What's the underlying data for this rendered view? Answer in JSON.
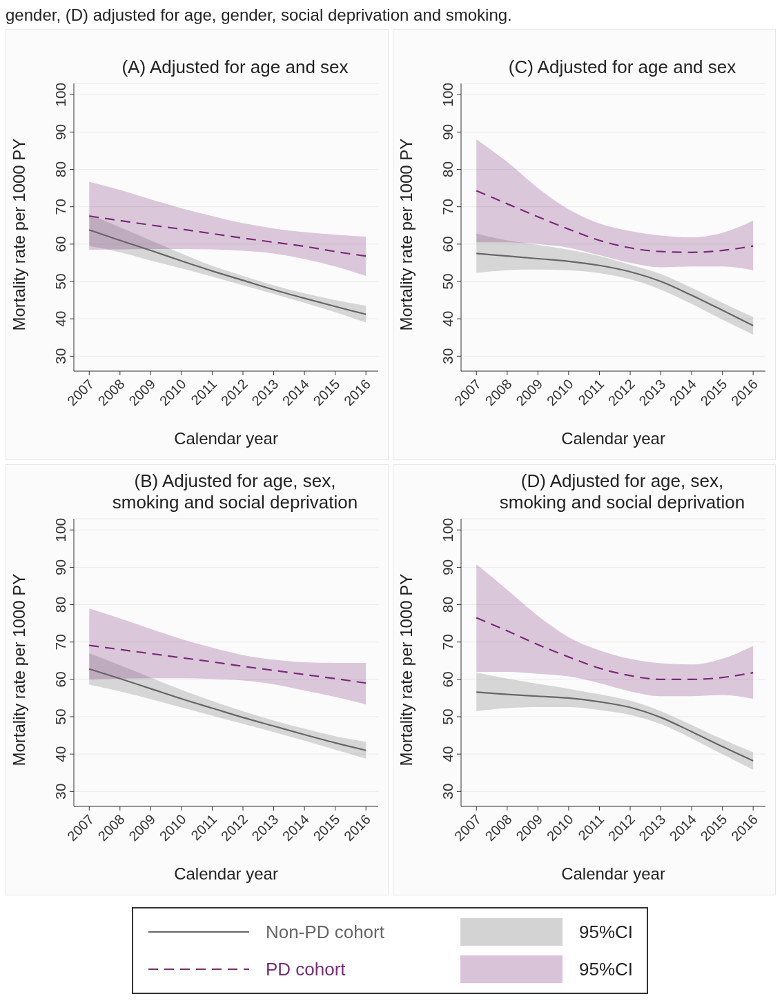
{
  "chart_data": [
    {
      "type": "line",
      "title": "(A) Adjusted for age and sex",
      "xlabel": "Calendar year",
      "ylabel": "Mortality rate per 1000 PY",
      "annotations": [
        "gender, (D) adjusted for age, gender, social deprivation and smoking."
      ],
      "x": [
        2007,
        2008,
        2009,
        2010,
        2011,
        2012,
        2013,
        2014,
        2015,
        2016
      ],
      "xlim": [
        2006.5,
        2016.4
      ],
      "xticks": [
        2007,
        2008,
        2009,
        2010,
        2011,
        2012,
        2013,
        2014,
        2015,
        2016
      ],
      "ylim": [
        26,
        103
      ],
      "yticks": [
        30,
        40,
        50,
        60,
        70,
        80,
        90,
        100
      ],
      "grid": "y",
      "series": [
        {
          "color": "#666666",
          "line_style": "solid",
          "values": [
            63.8,
            61,
            58.3,
            55.5,
            52.8,
            50.3,
            47.8,
            45.5,
            43.3,
            41.2
          ],
          "lower": [
            59.5,
            57.8,
            55.6,
            53.5,
            51.3,
            49,
            46.7,
            44.3,
            41.8,
            39
          ],
          "upper": [
            68,
            64.5,
            61,
            57.5,
            54.2,
            51.5,
            49,
            46.8,
            45,
            43.5
          ]
        },
        {
          "color": "#7a2a78",
          "line_style": "dashed",
          "values": [
            67.5,
            66.3,
            65.1,
            64,
            62.8,
            61.6,
            60.5,
            59.4,
            58,
            56.8
          ],
          "lower": [
            58.5,
            58.6,
            58.7,
            58.7,
            58.6,
            58.2,
            57.5,
            56,
            54,
            51.5
          ],
          "upper": [
            76.7,
            74.5,
            72,
            69.6,
            67.5,
            65.6,
            64.2,
            63.2,
            62.5,
            62
          ]
        }
      ]
    },
    {
      "type": "line",
      "title": "(C) Adjusted for age and sex",
      "xlabel": "Calendar year",
      "ylabel": "Mortality rate per 1000 PY",
      "x": [
        2007,
        2008,
        2009,
        2010,
        2011,
        2012,
        2013,
        2014,
        2015,
        2016
      ],
      "xlim": [
        2006.5,
        2016.4
      ],
      "xticks": [
        2007,
        2008,
        2009,
        2010,
        2011,
        2012,
        2013,
        2014,
        2015,
        2016
      ],
      "ylim": [
        26,
        103
      ],
      "yticks": [
        30,
        40,
        50,
        60,
        70,
        80,
        90,
        100
      ],
      "grid": "y",
      "series": [
        {
          "color": "#666666",
          "line_style": "solid",
          "values": [
            57.5,
            56.8,
            56.1,
            55.4,
            54.3,
            52.6,
            50,
            46.3,
            42.3,
            38.2
          ],
          "lower": [
            52.3,
            53,
            53.2,
            53,
            52.2,
            50.6,
            47.8,
            44,
            39.8,
            35.8
          ],
          "upper": [
            62.8,
            61,
            59.8,
            58.5,
            56.8,
            54.5,
            52,
            48.3,
            44.3,
            40.5
          ]
        },
        {
          "color": "#7a2a78",
          "line_style": "dashed",
          "values": [
            74.3,
            70.8,
            67.3,
            64,
            61,
            59,
            58,
            57.8,
            58.3,
            59.5
          ],
          "lower": [
            60.5,
            60.5,
            60,
            59,
            57,
            55,
            53.8,
            54,
            54,
            53
          ],
          "upper": [
            88,
            82,
            75,
            69.3,
            65.5,
            63.5,
            62.3,
            61.8,
            63,
            66.3
          ]
        }
      ]
    },
    {
      "type": "line",
      "title": "(B) Adjusted for age, sex,\nsmoking and social deprivation",
      "xlabel": "Calendar year",
      "ylabel": "Mortality rate per 1000 PY",
      "x": [
        2007,
        2008,
        2009,
        2010,
        2011,
        2012,
        2013,
        2014,
        2015,
        2016
      ],
      "xlim": [
        2006.5,
        2016.4
      ],
      "xticks": [
        2007,
        2008,
        2009,
        2010,
        2011,
        2012,
        2013,
        2014,
        2015,
        2016
      ],
      "ylim": [
        26,
        103
      ],
      "yticks": [
        30,
        40,
        50,
        60,
        70,
        80,
        90,
        100
      ],
      "grid": "y",
      "series": [
        {
          "color": "#666666",
          "line_style": "solid",
          "values": [
            62.8,
            60.2,
            57.5,
            54.8,
            52.3,
            49.8,
            47.5,
            45.2,
            43,
            41
          ],
          "lower": [
            58.6,
            56.8,
            54.7,
            52.5,
            50.3,
            48.1,
            45.9,
            43.6,
            41.2,
            38.8
          ],
          "upper": [
            67,
            63.8,
            60.5,
            57.2,
            54.2,
            51.5,
            49,
            46.8,
            44.8,
            43.3
          ]
        },
        {
          "color": "#7a2a78",
          "line_style": "dashed",
          "values": [
            69.1,
            68,
            66.9,
            65.8,
            64.7,
            63.5,
            62.4,
            61.3,
            60.2,
            59
          ],
          "lower": [
            60,
            60.2,
            60.3,
            60.3,
            60.1,
            59.7,
            58.7,
            57,
            55.3,
            53.3
          ],
          "upper": [
            79,
            76.3,
            73.5,
            70.8,
            68.5,
            66.5,
            65.3,
            64.6,
            64.4,
            64.4
          ]
        }
      ]
    },
    {
      "type": "line",
      "title": "(D) Adjusted for age, sex,\nsmoking and social deprivation",
      "xlabel": "Calendar year",
      "ylabel": "Mortality rate per 1000 PY",
      "annotations": [
        "95%CI",
        "95%CI"
      ],
      "legend": "bottom",
      "x": [
        2007,
        2008,
        2009,
        2010,
        2011,
        2012,
        2013,
        2014,
        2015,
        2016
      ],
      "xlim": [
        2006.5,
        2016.4
      ],
      "xticks": [
        2007,
        2008,
        2009,
        2010,
        2011,
        2012,
        2013,
        2014,
        2015,
        2016
      ],
      "ylim": [
        26,
        103
      ],
      "yticks": [
        30,
        40,
        50,
        60,
        70,
        80,
        90,
        100
      ],
      "grid": "y",
      "series": [
        {
          "name": "Non-PD cohort",
          "color": "#666666",
          "line_style": "solid",
          "values": [
            56.6,
            56,
            55.5,
            55,
            54,
            52.5,
            49.8,
            46,
            42,
            38.2
          ],
          "lower": [
            51.5,
            52.3,
            52.6,
            52.6,
            51.8,
            50.5,
            48,
            44.2,
            40,
            35.8
          ],
          "upper": [
            61.8,
            60.2,
            58.8,
            57.5,
            56,
            54.3,
            51.5,
            47.8,
            44,
            40.5
          ]
        },
        {
          "name": "PD cohort",
          "color": "#7a2a78",
          "line_style": "dashed",
          "values": [
            76.5,
            73,
            69.3,
            66,
            63,
            61,
            60,
            60,
            60.5,
            61.8
          ],
          "lower": [
            62,
            62,
            61.5,
            60.8,
            59,
            56.8,
            55.5,
            55.5,
            55.8,
            54.8
          ],
          "upper": [
            90.8,
            84,
            77,
            71.3,
            67.8,
            65.5,
            64.3,
            64,
            65.5,
            69
          ]
        }
      ]
    }
  ]
}
